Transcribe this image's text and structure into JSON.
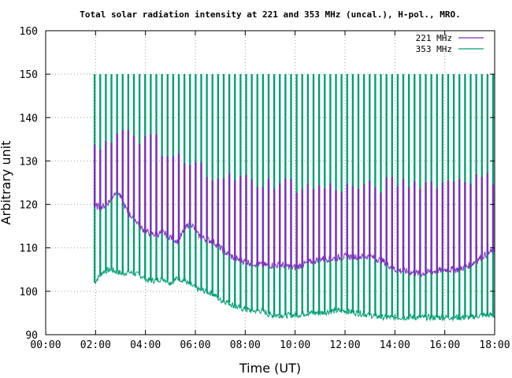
{
  "chart_data": {
    "type": "line",
    "title": "Total solar radiation intensity at 221 and 353 MHz (uncal.), H-pol., MRO.",
    "xlabel": "Time (UT)",
    "ylabel": "Arbitrary unit",
    "xlim": [
      0,
      18
    ],
    "ylim": [
      90,
      160
    ],
    "x_ticks": [
      0,
      2,
      4,
      6,
      8,
      10,
      12,
      14,
      16,
      18
    ],
    "x_tick_labels": [
      "00:00",
      "02:00",
      "04:00",
      "06:00",
      "08:00",
      "10:00",
      "12:00",
      "14:00",
      "16:00",
      "18:00"
    ],
    "y_ticks": [
      90,
      100,
      110,
      120,
      130,
      140,
      150,
      160
    ],
    "y_tick_labels": [
      "90",
      "100",
      "110",
      "120",
      "130",
      "140",
      "150",
      "160"
    ],
    "grid": true,
    "legend_position": "top-right",
    "series": [
      {
        "name": "221 MHz",
        "color": "#7f2fbf",
        "x": [
          1.95,
          2.3,
          2.6,
          2.85,
          3.1,
          3.3,
          3.6,
          3.85,
          4.1,
          4.4,
          4.7,
          5.0,
          5.3,
          5.55,
          5.8,
          6.1,
          6.4,
          6.7,
          7.0,
          7.3,
          7.6,
          7.9,
          8.3,
          8.7,
          9.0,
          9.5,
          10.0,
          10.5,
          11.0,
          11.5,
          12.0,
          12.5,
          13.0,
          13.5,
          14.0,
          14.5,
          15.0,
          15.5,
          16.0,
          16.5,
          17.0,
          17.5,
          18.0
        ],
        "y": [
          119.5,
          119.5,
          121,
          123.5,
          120.5,
          118,
          116.5,
          114.5,
          113.5,
          113,
          113.5,
          112.5,
          111.5,
          114,
          116,
          113,
          112,
          111.5,
          110,
          108.5,
          107.5,
          107,
          106.5,
          106,
          106,
          106,
          105.5,
          106.5,
          107.5,
          107.5,
          108,
          108,
          108,
          107,
          105,
          104.5,
          104,
          104.5,
          105,
          105,
          106,
          108,
          109.5
        ],
        "spike_high": [
          134,
          136,
          135,
          131,
          129,
          127,
          126,
          125,
          125,
          124,
          124,
          124,
          124,
          125,
          125,
          125,
          126,
          126
        ]
      },
      {
        "name": "353 MHz",
        "color": "#009e73",
        "x": [
          1.95,
          2.3,
          2.6,
          2.85,
          3.1,
          3.3,
          3.6,
          3.85,
          4.1,
          4.4,
          4.7,
          5.0,
          5.3,
          5.55,
          5.8,
          6.1,
          6.4,
          6.7,
          7.0,
          7.3,
          7.6,
          7.9,
          8.3,
          8.7,
          9.0,
          9.5,
          10.0,
          10.5,
          11.0,
          11.5,
          12.0,
          12.5,
          13.0,
          13.5,
          14.0,
          14.5,
          15.0,
          15.5,
          16.0,
          16.5,
          17.0,
          17.5,
          18.0
        ],
        "y": [
          102,
          104.5,
          105,
          104.5,
          104,
          104.5,
          104,
          103.5,
          102.5,
          102.5,
          103,
          102,
          103,
          102.5,
          101.5,
          100.5,
          100,
          99.5,
          98,
          97.5,
          96.5,
          96,
          95.5,
          95.5,
          94.5,
          94.5,
          94.5,
          95,
          95,
          95.5,
          95.5,
          95,
          94.5,
          94,
          94,
          94,
          94,
          94,
          94,
          94,
          94,
          94.5,
          94.5
        ],
        "spike_high": 150
      }
    ]
  }
}
